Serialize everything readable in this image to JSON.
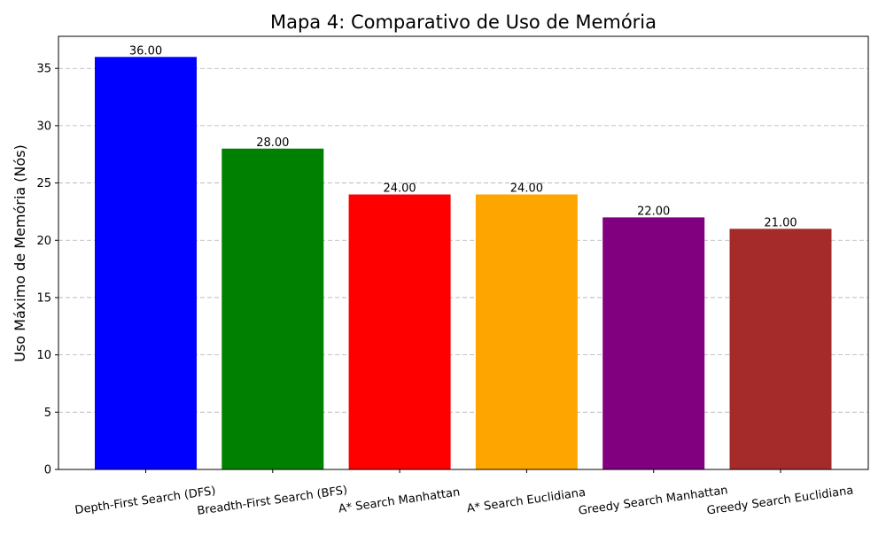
{
  "chart_data": {
    "type": "bar",
    "title": "Mapa 4: Comparativo de Uso de Memória",
    "xlabel": "",
    "ylabel": "Uso Máximo de Memória (Nós)",
    "categories": [
      "Depth-First Search (DFS)",
      "Breadth-First Search (BFS)",
      "A* Search Manhattan",
      "A* Search Euclidiana",
      "Greedy Search Manhattan",
      "Greedy Search Euclidiana"
    ],
    "values": [
      36,
      28,
      24,
      24,
      22,
      21
    ],
    "value_labels": [
      "36.00",
      "28.00",
      "24.00",
      "24.00",
      "22.00",
      "21.00"
    ],
    "colors": [
      "#0000ff",
      "#008000",
      "#ff0000",
      "#ffa500",
      "#800080",
      "#a52a2a"
    ],
    "ylim": [
      0,
      37.8
    ],
    "yticks": [
      0,
      5,
      10,
      15,
      20,
      25,
      30,
      35
    ],
    "grid": "y-dashed",
    "legend": "none"
  }
}
